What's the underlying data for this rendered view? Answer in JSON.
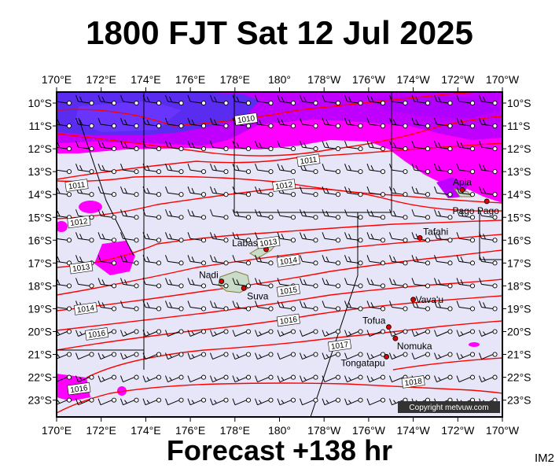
{
  "title": "1800 FJT Sat 12 Jul 2025",
  "footer": "Forecast +138 hr",
  "image_tag": "IM2",
  "copyright": "Copyright metvuw.com",
  "lon_labels": [
    "170°E",
    "172°E",
    "174°E",
    "176°E",
    "178°E",
    "180°",
    "178°W",
    "176°W",
    "174°W",
    "172°W",
    "170°W"
  ],
  "lat_labels": [
    "10°S",
    "11°S",
    "12°S",
    "13°S",
    "14°S",
    "15°S",
    "16°S",
    "17°S",
    "18°S",
    "19°S",
    "20°S",
    "21°S",
    "22°S",
    "23°S"
  ],
  "places": [
    {
      "name": "Apia",
      "lon": -171.8,
      "lat": -13.8
    },
    {
      "name": "Pago Pago",
      "lon": -170.7,
      "lat": -14.3
    },
    {
      "name": "Tafahi",
      "lon": -173.7,
      "lat": -15.9
    },
    {
      "name": "Labasa",
      "lon": 179.4,
      "lat": -16.4
    },
    {
      "name": "Nadi",
      "lon": 177.4,
      "lat": -17.8
    },
    {
      "name": "Suva",
      "lon": 178.4,
      "lat": -18.1
    },
    {
      "name": "Vava'u",
      "lon": -174.0,
      "lat": -18.6
    },
    {
      "name": "Tofua",
      "lon": -175.1,
      "lat": -19.8
    },
    {
      "name": "Nomuka",
      "lon": -174.8,
      "lat": -20.3
    },
    {
      "name": "Tongatapu",
      "lon": -175.2,
      "lat": -21.1
    }
  ],
  "isobars": [
    {
      "label": "1010",
      "lon": 178.5,
      "lat": -10.7
    },
    {
      "label": "1011",
      "lon": -178.7,
      "lat": -12.5
    },
    {
      "label": "1011",
      "lon": 170.9,
      "lat": -13.6
    },
    {
      "label": "1012",
      "lon": -179.8,
      "lat": -13.6
    },
    {
      "label": "1012",
      "lon": 171.0,
      "lat": -15.2
    },
    {
      "label": "1013",
      "lon": 179.5,
      "lat": -16.1
    },
    {
      "label": "1013",
      "lon": 171.1,
      "lat": -17.2
    },
    {
      "label": "1014",
      "lon": -179.6,
      "lat": -16.9
    },
    {
      "label": "1014",
      "lon": 171.3,
      "lat": -19.0
    },
    {
      "label": "1015",
      "lon": -179.6,
      "lat": -18.2
    },
    {
      "label": "1016",
      "lon": -179.6,
      "lat": -19.5
    },
    {
      "label": "1016",
      "lon": 171.8,
      "lat": -20.1
    },
    {
      "label": "1016",
      "lon": 171.0,
      "lat": -22.5
    },
    {
      "label": "1017",
      "lon": -177.3,
      "lat": -20.6
    },
    {
      "label": "1018",
      "lon": -174.0,
      "lat": -22.2
    }
  ],
  "colors": {
    "background_low": "#e6e6f8",
    "rain_light": "#ff00ff",
    "rain_medium": "#c000ff",
    "rain_heavy": "#5a2cf0",
    "isobar": "#ff0000",
    "land": "#c8dcc8"
  }
}
